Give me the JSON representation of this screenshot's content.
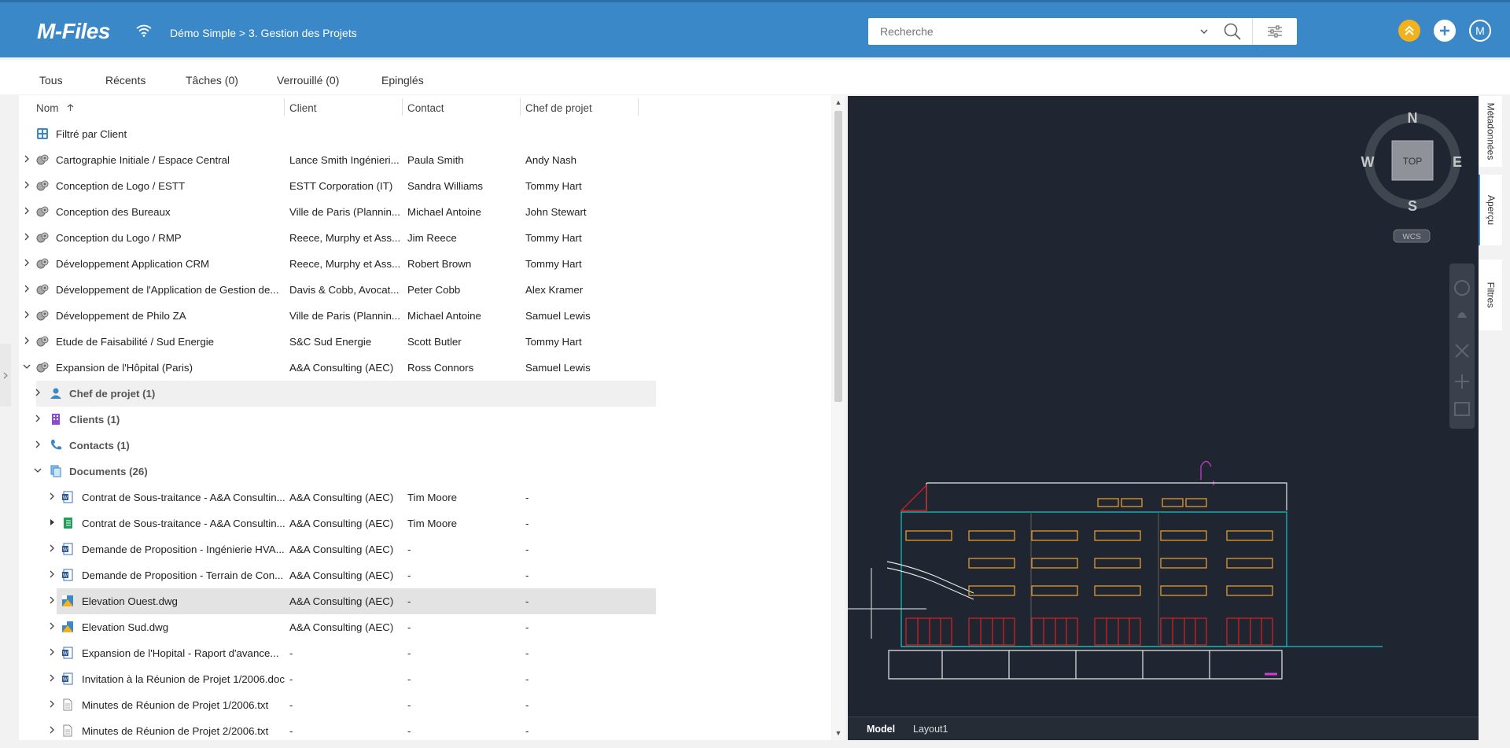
{
  "header": {
    "logo": "M-Files",
    "breadcrumb": "Démo Simple > 3. Gestion des Projets",
    "search_placeholder": "Recherche",
    "user_initial": "M",
    "accent": "#3a88c8"
  },
  "tabs": [
    "Tous",
    "Récents",
    "Tâches (0)",
    "Verrouillé (0)",
    "Epinglés"
  ],
  "columns": {
    "name": "Nom",
    "client": "Client",
    "contact": "Contact",
    "chef": "Chef de projet"
  },
  "filter_label": "Filtré par Client",
  "rows": [
    {
      "name": "Cartographie Initiale / Espace Central",
      "client": "Lance Smith Ingénieri...",
      "contact": "Paula Smith",
      "chef": "Andy Nash"
    },
    {
      "name": "Conception de Logo / ESTT",
      "client": "ESTT Corporation (IT)",
      "contact": "Sandra Williams",
      "chef": "Tommy Hart"
    },
    {
      "name": "Conception des Bureaux",
      "client": "Ville de Paris (Plannin...",
      "contact": "Michael Antoine",
      "chef": "John Stewart"
    },
    {
      "name": "Conception du Logo / RMP",
      "client": "Reece, Murphy et Ass...",
      "contact": "Jim Reece",
      "chef": "Tommy Hart"
    },
    {
      "name": "Développement Application CRM",
      "client": "Reece, Murphy et Ass...",
      "contact": "Robert Brown",
      "chef": "Tommy Hart"
    },
    {
      "name": "Développement de l'Application de Gestion de...",
      "client": "Davis & Cobb, Avocat...",
      "contact": "Peter Cobb",
      "chef": "Alex Kramer"
    },
    {
      "name": "Développement de Philo ZA",
      "client": "Ville de Paris (Plannin...",
      "contact": "Michael Antoine",
      "chef": "Samuel Lewis"
    },
    {
      "name": "Etude de Faisabilité / Sud Energie",
      "client": "S&C Sud Energie",
      "contact": "Scott Butler",
      "chef": "Tommy Hart"
    },
    {
      "name": "Expansion de l'Hôpital (Paris)",
      "client": "A&A Consulting (AEC)",
      "contact": "Ross Connors",
      "chef": "Samuel Lewis"
    }
  ],
  "groups": [
    "Chef de projet (1)",
    "Clients (1)",
    "Contacts (1)",
    "Documents (26)"
  ],
  "documents": [
    {
      "name": "Contrat de Sous-traitance - A&A Consultin...",
      "client": "A&A Consulting (AEC)",
      "contact": "Tim Moore",
      "chef": "-"
    },
    {
      "name": "Contrat de Sous-traitance - A&A Consultin...",
      "client": "A&A Consulting (AEC)",
      "contact": "Tim Moore",
      "chef": "-"
    },
    {
      "name": "Demande de Proposition - Ingénierie HVA...",
      "client": "A&A Consulting (AEC)",
      "contact": "-",
      "chef": "-"
    },
    {
      "name": "Demande de Proposition - Terrain de Con...",
      "client": "A&A Consulting (AEC)",
      "contact": "-",
      "chef": "-"
    },
    {
      "name": "Elevation Ouest.dwg",
      "client": "A&A Consulting (AEC)",
      "contact": "-",
      "chef": "-"
    },
    {
      "name": "Elevation Sud.dwg",
      "client": "A&A Consulting (AEC)",
      "contact": "-",
      "chef": "-"
    },
    {
      "name": "Expansion de l'Hopital - Raport d'avance...",
      "client": "-",
      "contact": "-",
      "chef": "-"
    },
    {
      "name": "Invitation à la Réunion de Projet 1/2006.doc",
      "client": "-",
      "contact": "-",
      "chef": "-"
    },
    {
      "name": "Minutes de Réunion de Projet 1/2006.txt",
      "client": "-",
      "contact": "-",
      "chef": "-"
    },
    {
      "name": "Minutes de Réunion de Projet 2/2006.txt",
      "client": "-",
      "contact": "-",
      "chef": "-"
    }
  ],
  "preview": {
    "compass": {
      "n": "N",
      "e": "E",
      "s": "S",
      "w": "W",
      "center": "TOP",
      "wcs": "WCS"
    },
    "tabs": [
      "Model",
      "Layout1"
    ]
  },
  "side_tabs": [
    "Métadonnées",
    "Aperçu",
    "Filtres"
  ]
}
